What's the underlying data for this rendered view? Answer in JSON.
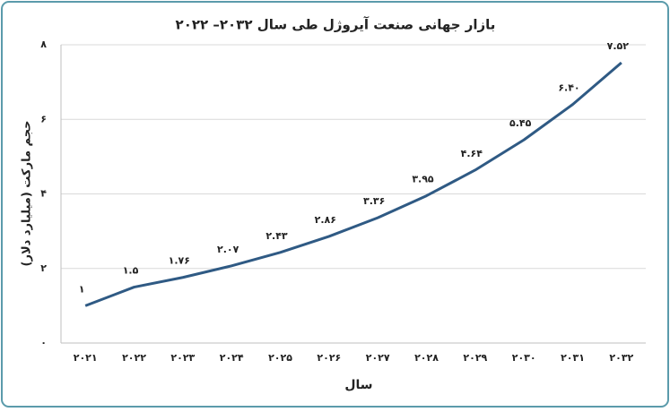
{
  "chart_data": {
    "type": "line",
    "title": "بازار جهانی صنعت آیروژل طی سال ۲۰۳۲– ۲۰۲۲",
    "x_label": "سال",
    "y_label": "حجم مارکت (میلیارد دلار)",
    "categories": [
      "۲۰۲۱",
      "۲۰۲۲",
      "۲۰۲۳",
      "۲۰۲۴",
      "۲۰۲۵",
      "۲۰۲۶",
      "۲۰۲۷",
      "۲۰۲۸",
      "۲۰۲۹",
      "۲۰۳۰",
      "۲۰۳۱",
      "۲۰۳۲"
    ],
    "values": [
      1,
      1.5,
      1.76,
      2.07,
      2.43,
      2.86,
      3.36,
      3.95,
      4.64,
      5.45,
      6.4,
      7.52
    ],
    "value_labels": [
      "۱",
      "۱.۵",
      "۱.۷۶",
      "۲.۰۷",
      "۲.۴۳",
      "۲.۸۶",
      "۳.۳۶",
      "۳.۹۵",
      "۴.۶۴",
      "۵.۴۵",
      "۶.۴۰",
      "۷.۵۲"
    ],
    "color": "#2f5a84",
    "ylim": [
      0,
      8
    ],
    "yticks": [
      {
        "value": 0,
        "label": "۰"
      },
      {
        "value": 2,
        "label": "۲"
      },
      {
        "value": 4,
        "label": "۴"
      },
      {
        "value": 6,
        "label": "۶"
      },
      {
        "value": 8,
        "label": "۸"
      }
    ],
    "grid": true
  }
}
